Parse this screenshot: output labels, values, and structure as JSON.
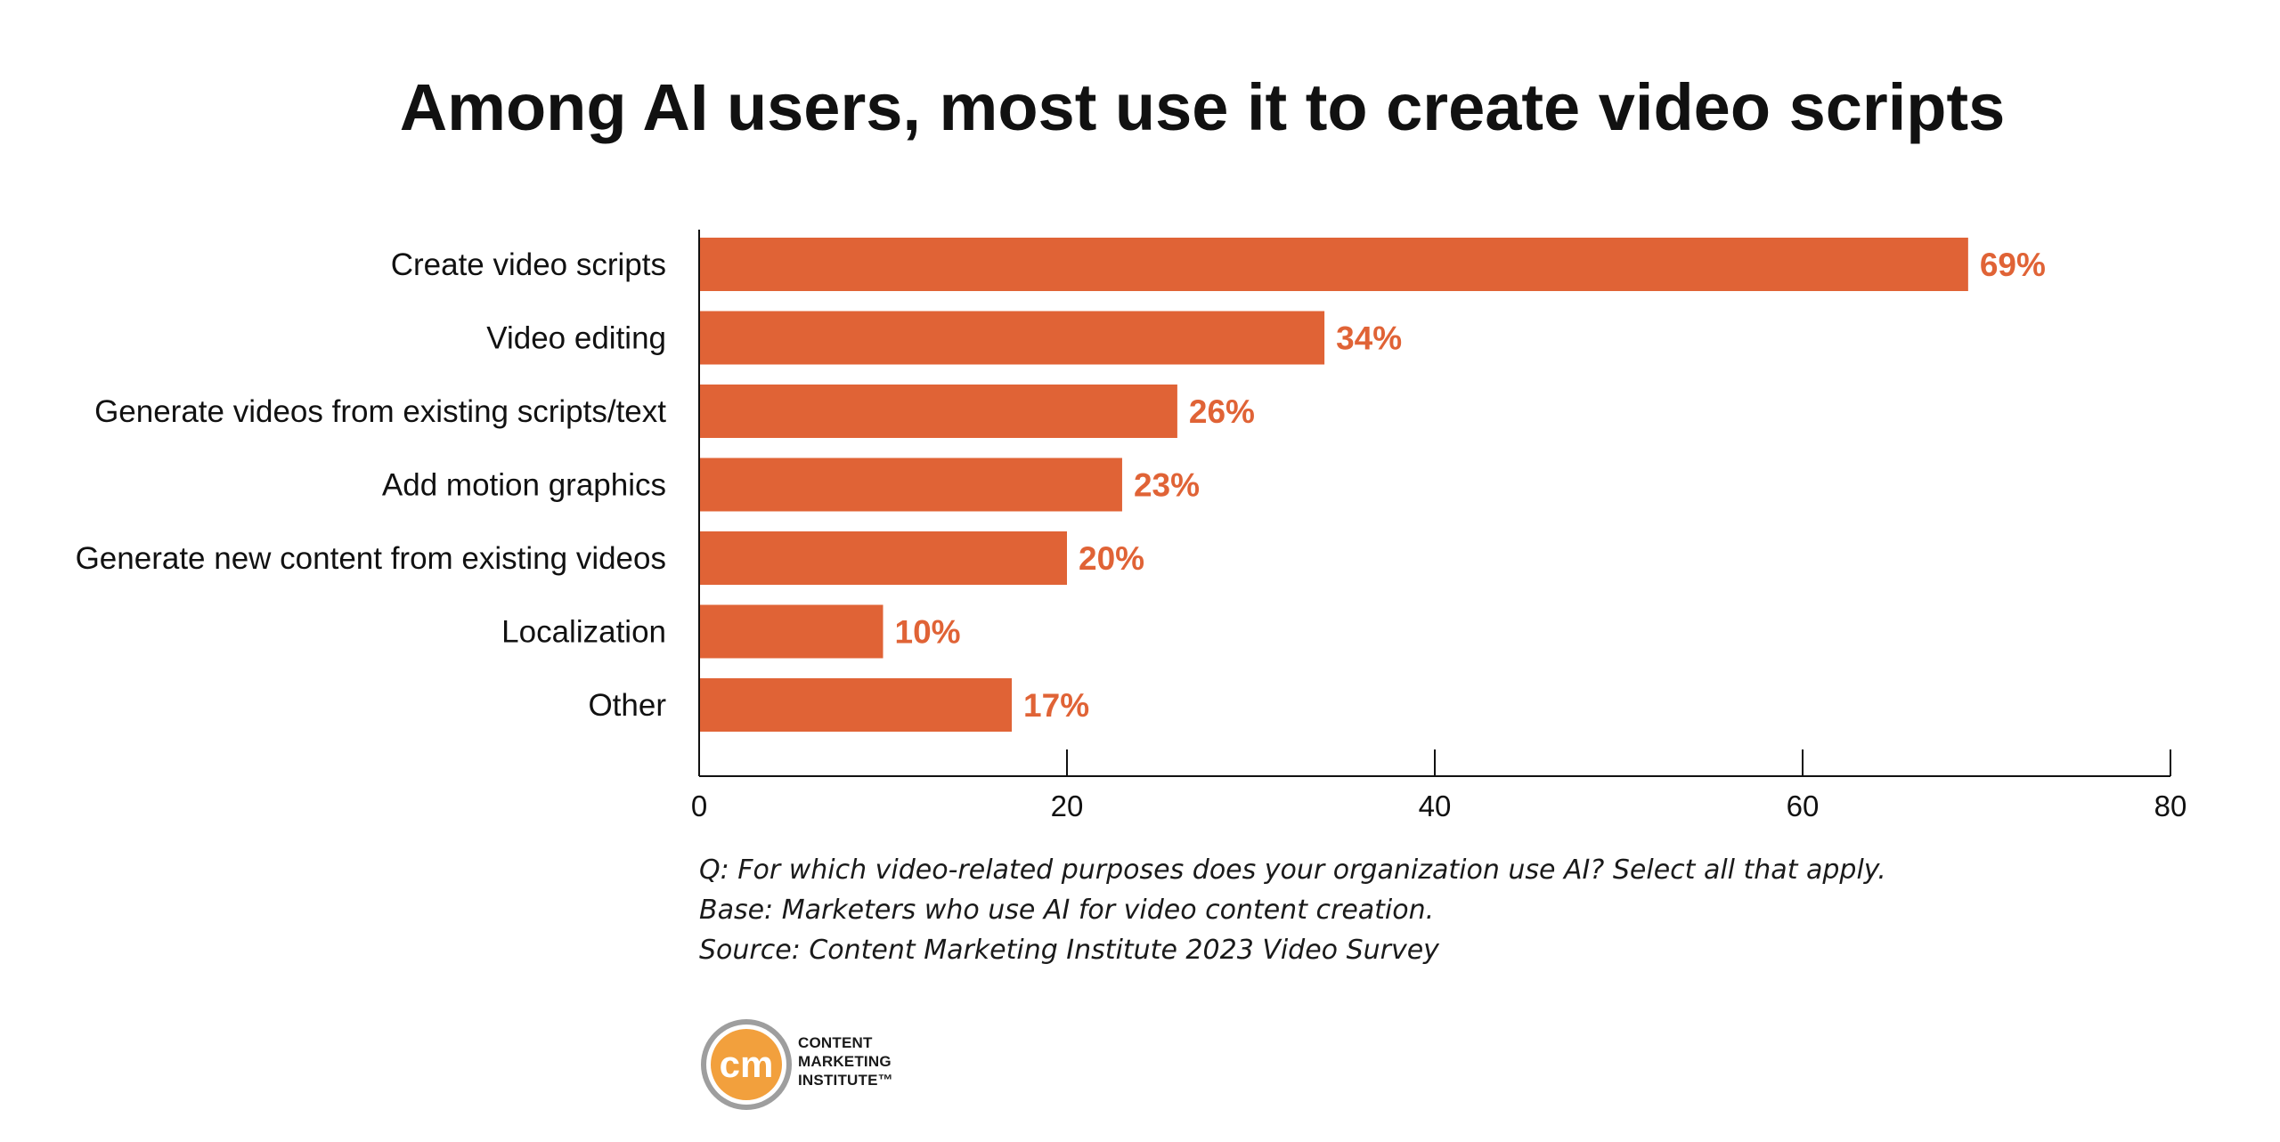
{
  "chart_data": {
    "type": "bar",
    "orientation": "horizontal",
    "title": "Among AI users, most use it to create video scripts",
    "categories": [
      "Create video scripts",
      "Video editing",
      "Generate videos from existing scripts/text",
      "Add motion graphics",
      "Generate new content from existing videos",
      "Localization",
      "Other"
    ],
    "values": [
      69,
      34,
      26,
      23,
      20,
      10,
      17
    ],
    "value_labels": [
      "69%",
      "34%",
      "26%",
      "23%",
      "20%",
      "10%",
      "17%"
    ],
    "xlim": [
      0,
      80
    ],
    "xticks": [
      0,
      20,
      40,
      60,
      80
    ],
    "xlabel": "",
    "ylabel": "",
    "grid": false,
    "bar_color": "#e06336",
    "label_color": "#e06336"
  },
  "notes": {
    "question": "Q: For which video-related purposes does your organization use AI? Select all that apply.",
    "base": "Base: Marketers who use AI for video content creation.",
    "source": "Source: Content Marketing Institute 2023 Video Survey"
  },
  "logo": {
    "mark": "cm",
    "line1": "CONTENT",
    "line2": "MARKETING",
    "line3": "INSTITUTE™",
    "ring_color": "#9e9e9e",
    "fill_color": "#f2a03d"
  }
}
